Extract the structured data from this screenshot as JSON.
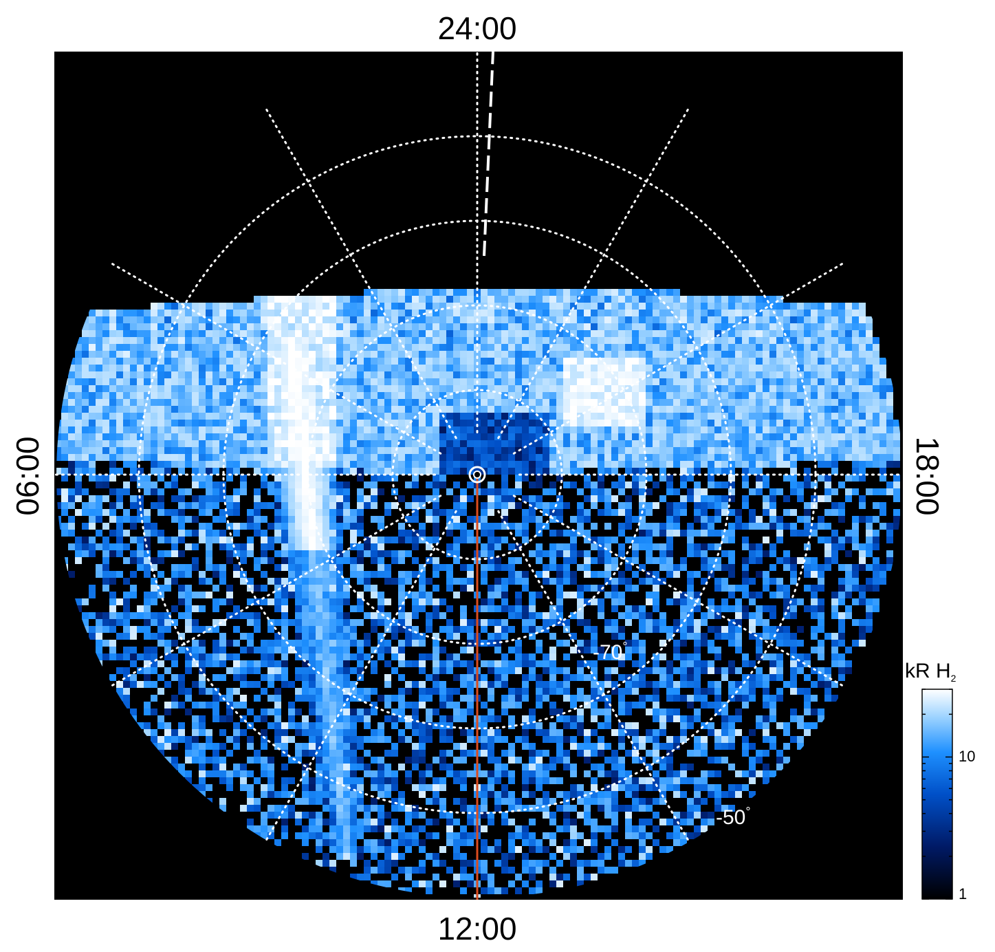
{
  "chart_data": {
    "type": "heatmap",
    "projection": "polar, south pole at centre, local time around the rim",
    "local_time_labels": {
      "top": "24:00",
      "left": "06:00",
      "right": "18:00",
      "bottom": "12:00"
    },
    "latitude_labels": [
      {
        "text": "-70",
        "deg": "°",
        "latitude": -70
      },
      {
        "text": "-50",
        "deg": "°",
        "latitude": -50
      }
    ],
    "grid": {
      "latitude_circles": [
        -80,
        -70,
        -60,
        -50
      ],
      "meridian_spacing_hours": 2,
      "style": "dotted white"
    },
    "colorbar": {
      "unit_text": "kR H",
      "unit_subscript": "2",
      "scale": "log",
      "range": [
        1,
        30
      ],
      "tick_labels": [
        {
          "text": "1",
          "value": 1
        },
        {
          "text": "10",
          "value": 10
        }
      ],
      "colormap": [
        "#000000",
        "#001a66",
        "#0050c8",
        "#1e90ff",
        "#9fd4ff",
        "#ffffff"
      ]
    },
    "features": {
      "main_oval": "bright band across the nightside, roughly -68° to -78° latitude",
      "dawn_arc": "very bright arc near 07:00-09:00 local time extending equatorward",
      "noon_meridian": "red line from pole to 12:00"
    },
    "colors": {
      "background": "#000000",
      "noon_line": "#dc4c1e",
      "grid": "#ffffff"
    }
  }
}
